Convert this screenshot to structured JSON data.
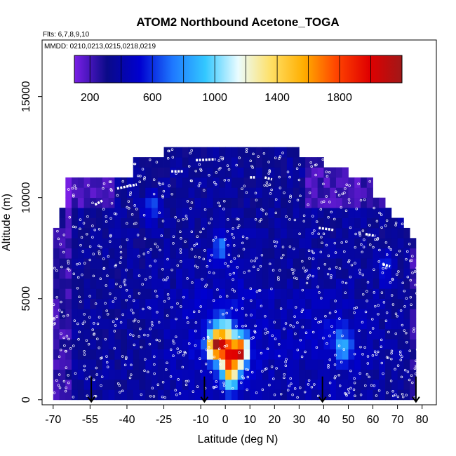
{
  "chart_data": {
    "type": "heatmap",
    "title": "ATOM2 Northbound Acetone_TOGA",
    "flights_note": "Flts: 6,7,8,9,10",
    "dates_note": "MMDD: 0210,0213,0215,0218,0219",
    "xlabel": "Latitude (deg N)",
    "ylabel": "Altitude (m)",
    "xlim": [
      -70,
      85
    ],
    "ylim": [
      0,
      17500
    ],
    "x_ticks": [
      -70,
      -55,
      -40,
      -25,
      -10,
      0,
      10,
      20,
      30,
      40,
      50,
      60,
      70,
      80
    ],
    "y_ticks": [
      0,
      5000,
      10000,
      15000
    ],
    "colorbar": {
      "range": [
        100,
        2200
      ],
      "ticks": [
        200,
        600,
        1000,
        1400,
        1800
      ],
      "dividers": [
        200,
        400,
        600,
        800,
        1000,
        1200,
        1400,
        1600,
        1800,
        2000
      ],
      "colors": [
        "#7a1fe6",
        "#0a0a88",
        "#0000d0",
        "#1e78ff",
        "#33c8ff",
        "#eafcff",
        "#ffe066",
        "#ffae00",
        "#ff4400",
        "#e00000",
        "#a01818"
      ]
    },
    "airport_markers_lat": [
      -54.5,
      -8.5,
      39.5,
      77.5
    ],
    "altitude_profile": [
      {
        "lat_range": [
          -70,
          -67
        ],
        "top": 8500
      },
      {
        "lat_range": [
          -67,
          -64
        ],
        "top": 9500
      },
      {
        "lat_range": [
          -64,
          -50
        ],
        "top": 11000
      },
      {
        "lat_range": [
          -50,
          -37
        ],
        "top": 11000
      },
      {
        "lat_range": [
          -37,
          -24
        ],
        "top": 12000
      },
      {
        "lat_range": [
          -24,
          -10
        ],
        "top": 12500
      },
      {
        "lat_range": [
          -10,
          30
        ],
        "top": 12500
      },
      {
        "lat_range": [
          30,
          40
        ],
        "top": 12000
      },
      {
        "lat_range": [
          40,
          50
        ],
        "top": 11500
      },
      {
        "lat_range": [
          50,
          60
        ],
        "top": 11000
      },
      {
        "lat_range": [
          60,
          65
        ],
        "top": 10000
      },
      {
        "lat_range": [
          65,
          68
        ],
        "top": 9500
      },
      {
        "lat_range": [
          68,
          72
        ],
        "top": 9000
      },
      {
        "lat_range": [
          72,
          75
        ],
        "top": 8500
      },
      {
        "lat_range": [
          75,
          77
        ],
        "top": 8000
      },
      {
        "lat_range": [
          77,
          78
        ],
        "top": 7500
      }
    ],
    "hotspots": [
      {
        "lat": -4,
        "alt": 2700,
        "value": 1900
      },
      {
        "lat": 6,
        "alt": 2400,
        "value": 1900
      },
      {
        "lat": 1,
        "alt": 2200,
        "value": 1500
      },
      {
        "lat": 0,
        "alt": 3300,
        "value": 1100
      },
      {
        "lat": 2,
        "alt": 1200,
        "value": 1250
      },
      {
        "lat": 48,
        "alt": 2700,
        "value": 750
      },
      {
        "lat": -2,
        "alt": 7500,
        "value": 700
      },
      {
        "lat": -30,
        "alt": 9500,
        "value": 650
      },
      {
        "lat": 65,
        "alt": 6500,
        "value": 600
      }
    ],
    "grid": false,
    "legend_position": "top"
  }
}
